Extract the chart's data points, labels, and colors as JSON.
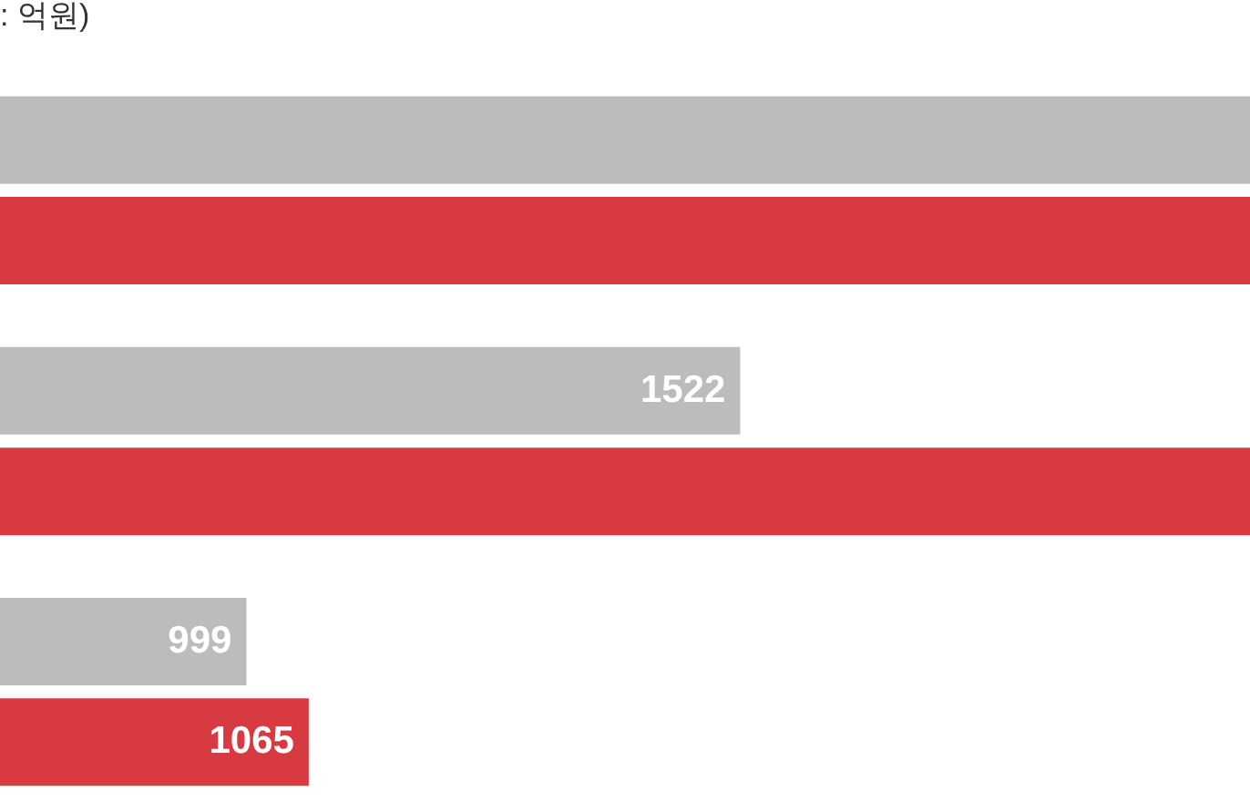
{
  "chart_data": {
    "type": "bar",
    "orientation": "horizontal",
    "title": ": 억원)",
    "categories": [
      null,
      null,
      null
    ],
    "series": [
      {
        "color": "#bcbcbc",
        "values": [
          2062,
          1522,
          999
        ],
        "value_labels": [
          null,
          "1522",
          "999"
        ]
      },
      {
        "color": "#d83a41",
        "values": [
          2062,
          2062,
          1065
        ],
        "value_labels": [
          null,
          null,
          "1065"
        ]
      }
    ],
    "xlim": [
      738,
      2062
    ],
    "tick_labels": false,
    "legend": false
  }
}
